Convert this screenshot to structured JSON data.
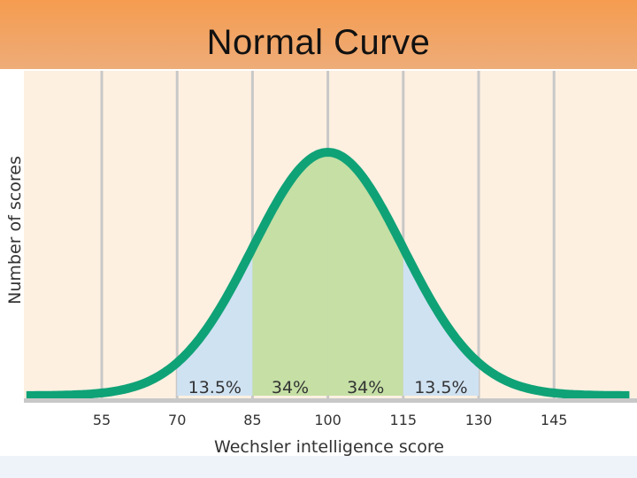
{
  "slide": {
    "title": "Normal Curve"
  },
  "chart_data": {
    "type": "area",
    "title": "",
    "xlabel": "Wechsler intelligence score",
    "ylabel": "Number of scores",
    "x_ticks": [
      55,
      70,
      85,
      100,
      115,
      130,
      145
    ],
    "xlim": [
      40,
      160
    ],
    "distribution": {
      "mean": 100,
      "sd": 15
    },
    "regions": [
      {
        "from": 70,
        "to": 85,
        "label": "13.5%",
        "value": 13.5,
        "color": "#cfe2f2"
      },
      {
        "from": 85,
        "to": 100,
        "label": "34%",
        "value": 34,
        "color": "#c5dfa5"
      },
      {
        "from": 100,
        "to": 115,
        "label": "34%",
        "value": 34,
        "color": "#c5dfa5"
      },
      {
        "from": 115,
        "to": 130,
        "label": "13.5%",
        "value": 13.5,
        "color": "#cfe2f2"
      }
    ],
    "grid": true,
    "colors": {
      "curve": "#0fa277",
      "plot_background": "#fdf0e1",
      "gridline": "#c8c8c8",
      "text": "#333333"
    }
  }
}
